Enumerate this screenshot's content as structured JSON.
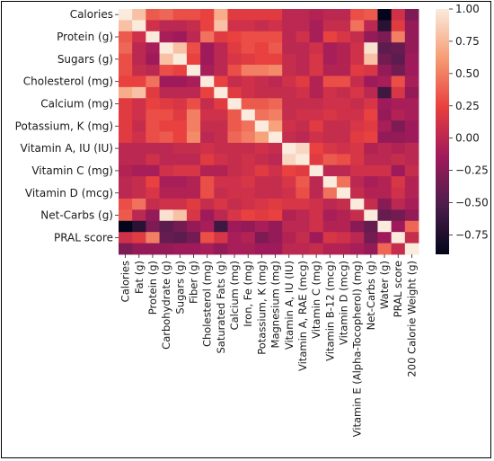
{
  "chart_data": {
    "type": "heatmap",
    "variables": [
      "Calories",
      "Fat (g)",
      "Protein (g)",
      "Carbohydrate (g)",
      "Sugars (g)",
      "Fiber (g)",
      "Cholesterol (mg)",
      "Saturated Fats (g)",
      "Calcium (mg)",
      "Iron, Fe (mg)",
      "Potassium, K (mg)",
      "Magnesium (mg)",
      "Vitamin A, IU (IU)",
      "Vitamin A, RAE (mcg)",
      "Vitamin C (mg)",
      "Vitamin B-12 (mcg)",
      "Vitamin D (mcg)",
      "Vitamin E (Alpha-Tocopherol) (mg)",
      "Net-Carbs (g)",
      "Water (g)",
      "PRAL score",
      "200 Calorie Weight (g)"
    ],
    "y_tick_labels": [
      "Calories",
      "Protein (g)",
      "Sugars (g)",
      "Cholesterol (mg)",
      "Calcium (mg)",
      "Potassium, K (mg)",
      "Vitamin A, IU (IU)",
      "Vitamin C (mg)",
      "Vitamin D (mcg)",
      "Net-Carbs (g)",
      "PRAL score"
    ],
    "x_tick_labels": [
      "Calories",
      "Fat (g)",
      "Protein (g)",
      "Carbohydrate (g)",
      "Sugars (g)",
      "Fiber (g)",
      "Cholesterol (mg)",
      "Saturated Fats (g)",
      "Calcium (mg)",
      "Iron, Fe (mg)",
      "Potassium, K (mg)",
      "Magnesium (mg)",
      "Vitamin A, IU (IU)",
      "Vitamin A, RAE (mcg)",
      "Vitamin C (mg)",
      "Vitamin B-12 (mcg)",
      "Vitamin D (mcg)",
      "Vitamin E (Alpha-Tocopherol) (mg)",
      "Net-Carbs (g)",
      "Water (g)",
      "PRAL score",
      "200 Calorie Weight (g)"
    ],
    "values": [
      [
        1.0,
        0.8,
        0.35,
        0.4,
        0.3,
        0.3,
        0.25,
        0.7,
        0.2,
        0.2,
        0.2,
        0.2,
        0.0,
        0.0,
        -0.05,
        0.0,
        0.0,
        0.3,
        0.35,
        -0.9,
        0.1,
        -0.3
      ],
      [
        0.8,
        1.0,
        0.1,
        0.0,
        0.0,
        0.05,
        0.25,
        0.8,
        0.1,
        0.1,
        0.05,
        0.1,
        0.0,
        0.0,
        -0.1,
        0.05,
        0.05,
        0.45,
        0.0,
        -0.7,
        0.2,
        -0.2
      ],
      [
        0.35,
        0.1,
        1.0,
        -0.1,
        -0.15,
        0.0,
        0.45,
        0.2,
        0.25,
        0.3,
        0.3,
        0.3,
        0.0,
        0.1,
        -0.1,
        0.25,
        0.15,
        0.05,
        -0.2,
        -0.3,
        0.5,
        -0.2
      ],
      [
        0.4,
        0.0,
        -0.1,
        1.0,
        0.8,
        0.3,
        -0.15,
        0.0,
        0.2,
        0.3,
        0.25,
        0.35,
        0.0,
        0.0,
        0.1,
        -0.1,
        -0.05,
        0.1,
        0.95,
        -0.45,
        -0.4,
        -0.2
      ],
      [
        0.3,
        0.0,
        -0.15,
        0.8,
        1.0,
        0.25,
        -0.15,
        0.0,
        0.15,
        0.2,
        0.25,
        0.25,
        0.05,
        0.0,
        0.15,
        -0.1,
        -0.05,
        0.1,
        0.8,
        -0.35,
        -0.45,
        -0.15
      ],
      [
        0.3,
        0.05,
        0.0,
        0.3,
        0.25,
        1.0,
        -0.1,
        0.0,
        0.3,
        0.5,
        0.5,
        0.55,
        0.05,
        0.0,
        0.15,
        -0.05,
        -0.05,
        0.2,
        0.15,
        -0.2,
        -0.35,
        -0.15
      ],
      [
        0.25,
        0.25,
        0.45,
        -0.15,
        -0.15,
        -0.1,
        1.0,
        0.25,
        0.05,
        0.1,
        0.05,
        0.0,
        0.1,
        0.2,
        -0.05,
        0.3,
        0.3,
        0.05,
        -0.15,
        -0.1,
        0.3,
        -0.1
      ],
      [
        0.7,
        0.8,
        0.2,
        0.0,
        0.0,
        0.0,
        0.25,
        1.0,
        0.2,
        0.1,
        0.05,
        0.05,
        0.05,
        0.1,
        -0.05,
        0.1,
        0.05,
        0.15,
        0.0,
        -0.6,
        0.15,
        -0.2
      ],
      [
        0.2,
        0.1,
        0.25,
        0.2,
        0.15,
        0.3,
        0.05,
        0.2,
        1.0,
        0.35,
        0.35,
        0.4,
        0.05,
        0.05,
        0.05,
        0.1,
        0.1,
        0.05,
        0.15,
        -0.15,
        -0.1,
        -0.1
      ],
      [
        0.2,
        0.1,
        0.3,
        0.3,
        0.2,
        0.5,
        0.1,
        0.1,
        0.35,
        1.0,
        0.45,
        0.5,
        0.05,
        0.1,
        0.1,
        0.15,
        0.1,
        0.1,
        0.25,
        -0.2,
        -0.05,
        -0.1
      ],
      [
        0.2,
        0.05,
        0.3,
        0.25,
        0.25,
        0.5,
        0.05,
        0.05,
        0.35,
        0.45,
        1.0,
        0.65,
        0.1,
        0.05,
        0.2,
        0.05,
        0.05,
        0.15,
        0.2,
        -0.1,
        -0.3,
        -0.15
      ],
      [
        0.2,
        0.1,
        0.3,
        0.35,
        0.25,
        0.55,
        0.0,
        0.05,
        0.4,
        0.5,
        0.65,
        1.0,
        0.05,
        0.0,
        0.1,
        0.05,
        0.05,
        0.2,
        0.25,
        -0.2,
        -0.2,
        -0.15
      ],
      [
        0.0,
        0.0,
        0.0,
        0.0,
        0.05,
        0.05,
        0.1,
        0.05,
        0.05,
        0.05,
        0.1,
        0.05,
        1.0,
        0.9,
        0.25,
        0.15,
        0.1,
        0.15,
        -0.05,
        0.0,
        -0.05,
        0.0
      ],
      [
        0.0,
        0.0,
        0.1,
        0.0,
        0.0,
        0.0,
        0.2,
        0.1,
        0.05,
        0.1,
        0.05,
        0.0,
        0.9,
        1.0,
        0.2,
        0.35,
        0.3,
        0.15,
        0.0,
        0.0,
        0.05,
        0.0
      ],
      [
        -0.05,
        -0.1,
        -0.1,
        0.1,
        0.15,
        0.15,
        -0.05,
        -0.05,
        0.05,
        0.1,
        0.2,
        0.1,
        0.25,
        0.2,
        1.0,
        0.0,
        0.0,
        0.1,
        0.1,
        0.1,
        -0.15,
        0.05
      ],
      [
        0.0,
        0.05,
        0.25,
        -0.1,
        -0.1,
        -0.05,
        0.3,
        0.1,
        0.1,
        0.15,
        0.05,
        0.05,
        0.15,
        0.35,
        0.0,
        1.0,
        0.45,
        0.0,
        -0.1,
        -0.05,
        0.15,
        -0.05
      ],
      [
        0.0,
        0.05,
        0.15,
        -0.05,
        -0.05,
        -0.05,
        0.3,
        0.05,
        0.1,
        0.1,
        0.05,
        0.05,
        0.1,
        0.3,
        0.0,
        0.45,
        1.0,
        0.05,
        -0.05,
        -0.05,
        0.1,
        -0.05
      ],
      [
        0.3,
        0.45,
        0.05,
        0.1,
        0.1,
        0.2,
        0.05,
        0.15,
        0.05,
        0.1,
        0.15,
        0.2,
        0.15,
        0.15,
        0.1,
        0.0,
        0.05,
        1.0,
        0.05,
        -0.25,
        0.0,
        -0.1
      ],
      [
        0.35,
        0.0,
        -0.2,
        0.95,
        0.8,
        0.15,
        -0.15,
        0.0,
        0.15,
        0.25,
        0.2,
        0.25,
        -0.05,
        0.0,
        0.1,
        -0.1,
        -0.05,
        0.05,
        1.0,
        -0.4,
        -0.35,
        -0.2
      ],
      [
        -0.9,
        -0.7,
        -0.3,
        -0.45,
        -0.35,
        -0.2,
        -0.1,
        -0.6,
        -0.15,
        -0.2,
        -0.1,
        -0.2,
        0.0,
        0.0,
        0.1,
        -0.05,
        -0.05,
        -0.25,
        -0.4,
        1.0,
        -0.15,
        0.4
      ],
      [
        0.1,
        0.2,
        0.5,
        -0.4,
        -0.45,
        -0.35,
        0.3,
        0.15,
        -0.1,
        -0.05,
        -0.3,
        -0.2,
        -0.05,
        0.05,
        -0.15,
        0.15,
        0.1,
        0.0,
        -0.35,
        -0.15,
        1.0,
        0.05
      ],
      [
        -0.3,
        -0.2,
        -0.2,
        -0.2,
        -0.15,
        -0.15,
        -0.1,
        -0.2,
        -0.1,
        -0.1,
        -0.15,
        -0.15,
        0.0,
        0.0,
        0.05,
        -0.05,
        -0.05,
        -0.1,
        -0.2,
        0.4,
        0.05,
        1.0
      ]
    ],
    "colorbar": {
      "min": -0.9,
      "max": 1.0,
      "ticks": [
        1.0,
        0.75,
        0.5,
        0.25,
        0.0,
        -0.25,
        -0.5,
        -0.75
      ],
      "tick_labels": [
        "1.00",
        "0.75",
        "0.50",
        "0.25",
        "0.00",
        "−0.25",
        "−0.50",
        "−0.75"
      ],
      "colormap": "rocket",
      "stops": [
        "#03051a",
        "#4c1d4b",
        "#a11a5b",
        "#e83f3f",
        "#f69c73",
        "#faebdd"
      ]
    },
    "grid": false,
    "legend": "colorbar-right"
  }
}
